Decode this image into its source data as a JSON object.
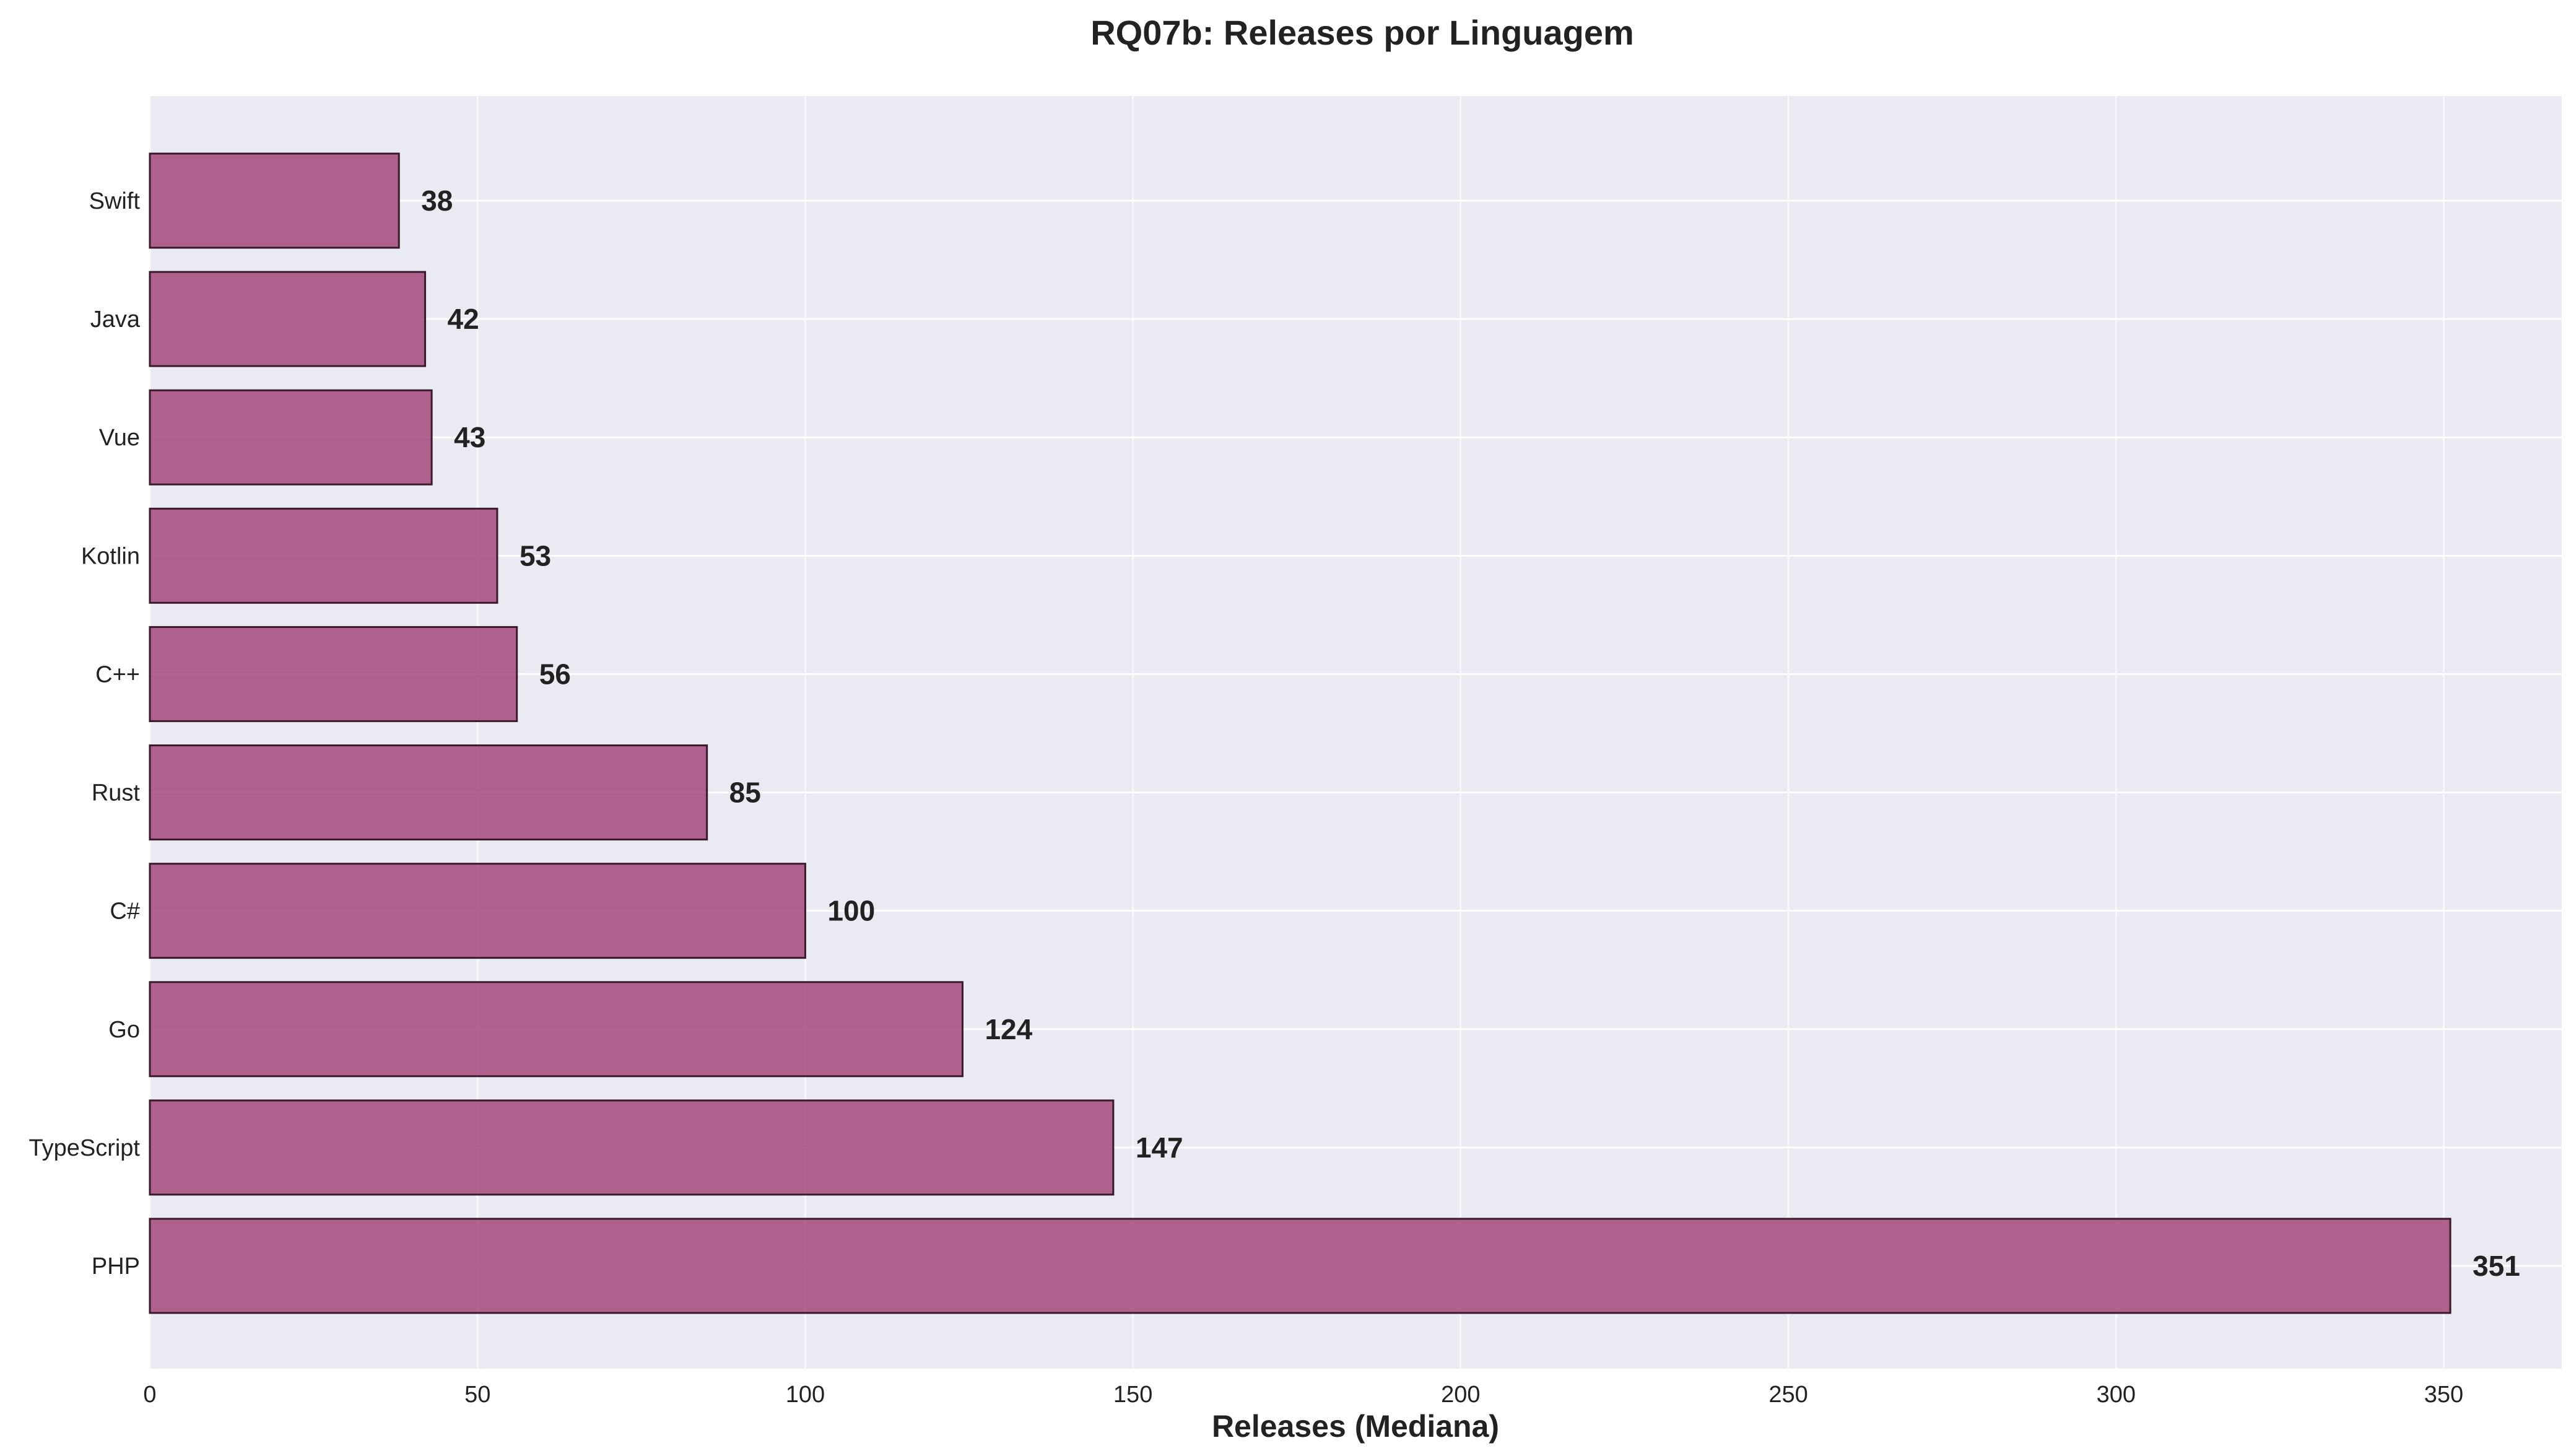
{
  "chart_data": {
    "type": "bar",
    "orientation": "horizontal",
    "title": "RQ07b: Releases por Linguagem",
    "xlabel": "Releases (Mediana)",
    "ylabel": "",
    "categories": [
      "PHP",
      "TypeScript",
      "Go",
      "C#",
      "Rust",
      "C++",
      "Kotlin",
      "Vue",
      "Java",
      "Swift"
    ],
    "values": [
      351,
      147,
      124,
      100,
      85,
      56,
      53,
      43,
      42,
      38
    ],
    "data_labels": [
      "351",
      "147",
      "124",
      "100",
      "85",
      "56",
      "53",
      "43",
      "42",
      "38"
    ],
    "xlim": [
      0,
      368
    ],
    "x_ticks": [
      0,
      50,
      100,
      150,
      200,
      250,
      300,
      350
    ],
    "x_tick_labels": [
      "0",
      "50",
      "100",
      "150",
      "200",
      "250",
      "300",
      "350"
    ],
    "grid": true,
    "bar_color": "#a4497c",
    "bar_edge_color": "#3a1a2c",
    "plot_background": "#eaeaf2",
    "grid_color": "#ffffff"
  }
}
